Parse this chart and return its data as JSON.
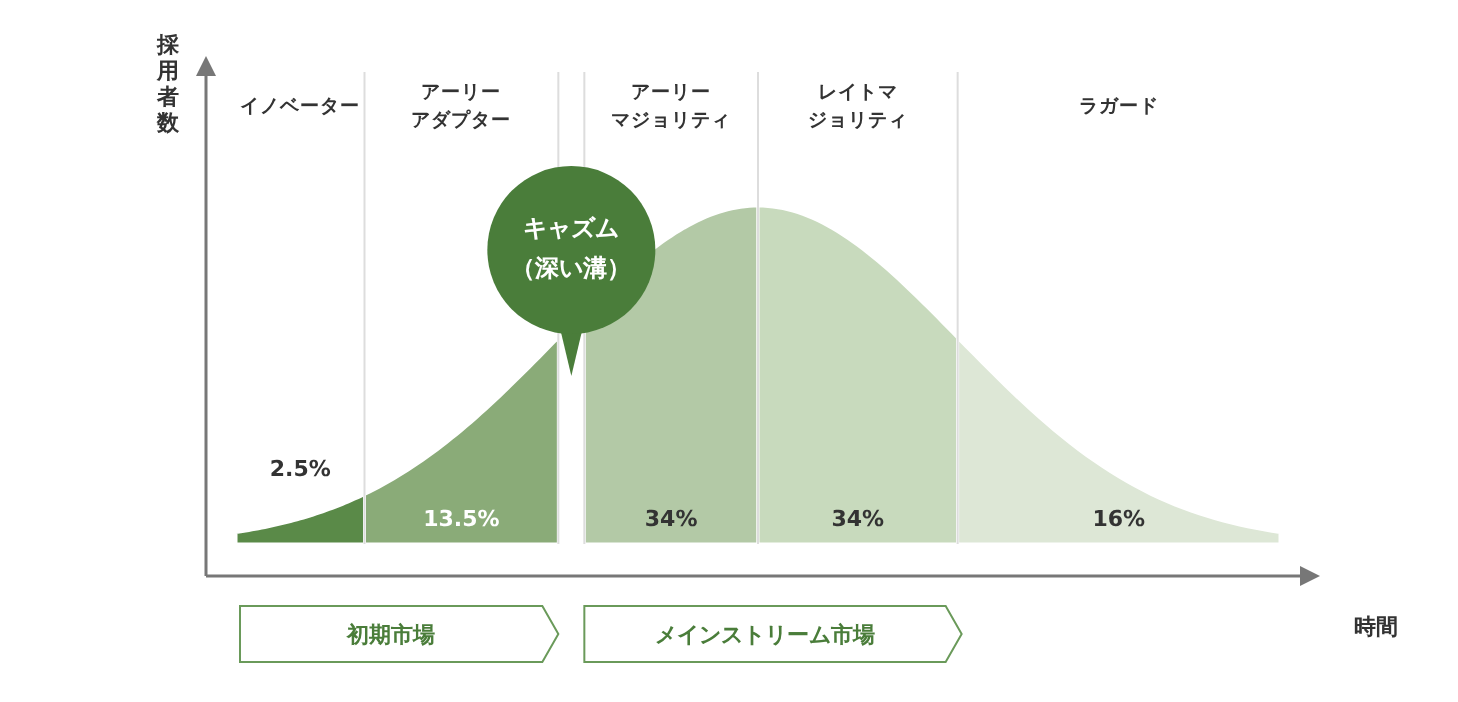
{
  "chart_data": {
    "type": "other",
    "ylabel": "採用者数",
    "xlabel": "時間",
    "categories": [
      "イノベーター",
      "アーリーアダプター",
      "アーリーマジョリティ",
      "レイトマジョリティ",
      "ラガード"
    ],
    "values": [
      2.5,
      13.5,
      34,
      34,
      16
    ],
    "value_labels": [
      "2.5%",
      "13.5%",
      "34%",
      "34%",
      "16%"
    ],
    "colors": [
      "#5a8a48",
      "#8aab78",
      "#b3c9a6",
      "#c8dabd",
      "#dde7d6"
    ],
    "annotations": [
      "キャズム（深い溝）",
      "初期市場",
      "メインストリーム市場"
    ]
  }
}
